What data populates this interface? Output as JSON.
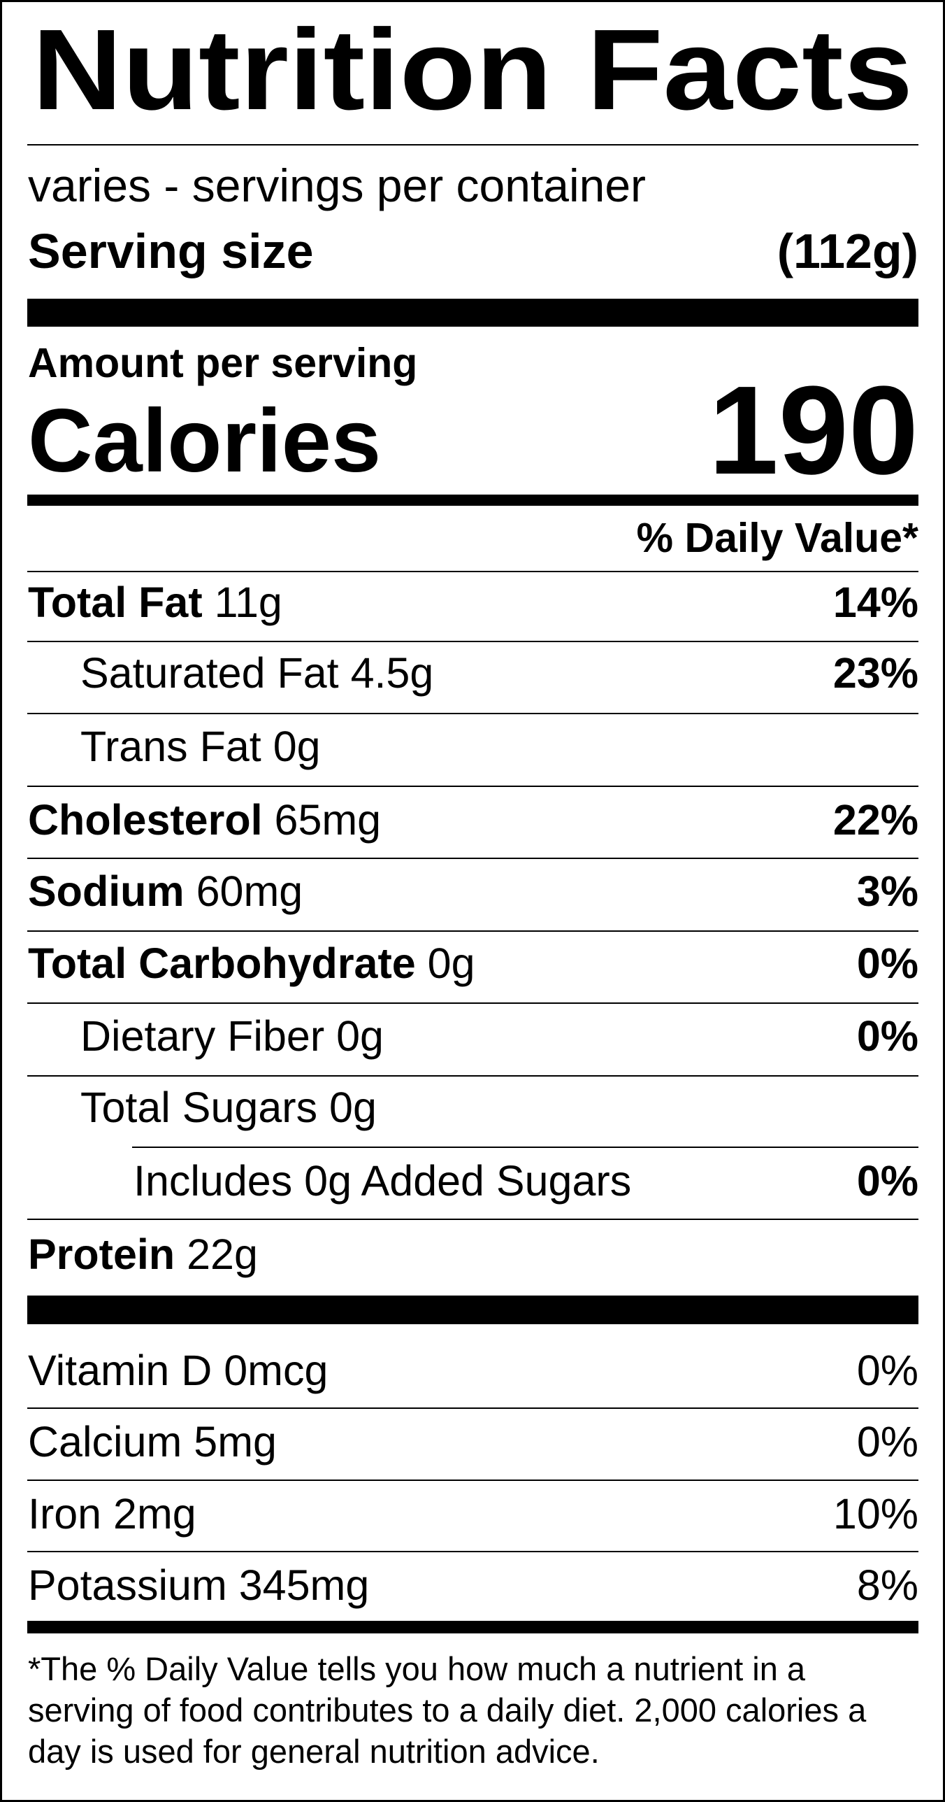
{
  "title": "Nutrition Facts",
  "servings": "varies -  servings per container",
  "serving_size": {
    "label": "Serving size",
    "value": "(112g)"
  },
  "amount_per_serving": "Amount per serving",
  "calories": {
    "label": "Calories",
    "value": "190"
  },
  "daily_value_header": "% Daily Value*",
  "nutrients": [
    {
      "name": "Total Fat",
      "amount": "11g",
      "dv": "14%"
    },
    {
      "name": "Saturated Fat",
      "amount": "4.5g",
      "dv": "23%"
    },
    {
      "name": "Trans Fat",
      "amount": "0g"
    },
    {
      "name": "Cholesterol",
      "amount": "65mg",
      "dv": "22%"
    },
    {
      "name": "Sodium",
      "amount": "60mg",
      "dv": "3%"
    },
    {
      "name": "Total Carbohydrate",
      "amount": "0g",
      "dv": "0%"
    },
    {
      "name": "Dietary Fiber",
      "amount": "0g",
      "dv": "0%"
    },
    {
      "name": "Total Sugars",
      "amount": "0g"
    },
    {
      "name": "Includes 0g Added Sugars",
      "dv": "0%"
    },
    {
      "name": "Protein",
      "amount": "22g"
    }
  ],
  "vitamins": [
    {
      "name": "Vitamin D 0mcg",
      "dv": "0%"
    },
    {
      "name": "Calcium 5mg",
      "dv": "0%"
    },
    {
      "name": "Iron 2mg",
      "dv": "10%"
    },
    {
      "name": "Potassium 345mg",
      "dv": "8%"
    }
  ],
  "footnote": [
    "*The % Daily Value tells you how much a nutrient in a",
    "serving of food contributes to a daily diet. 2,000 calories a",
    "day is used for general nutrition advice."
  ]
}
